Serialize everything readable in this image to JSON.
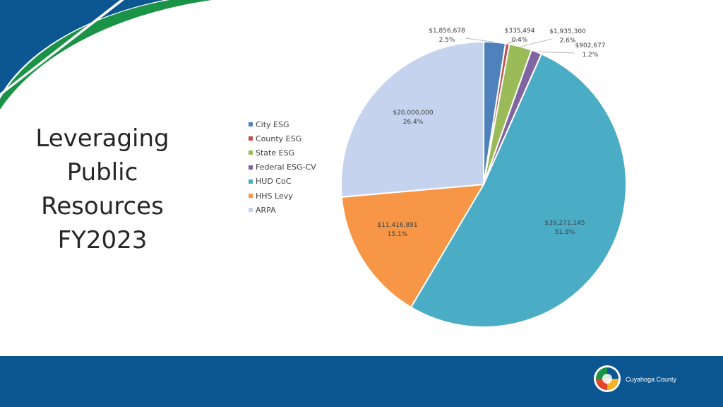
{
  "page": {
    "title_lines": [
      "Leveraging",
      "Public",
      "Resources",
      "FY2023"
    ],
    "footer_org": "Cuyahoga County"
  },
  "colors": {
    "corner_blue": "#0c5691",
    "corner_green": "#1a9346",
    "footer_blue": "#0c5691"
  },
  "icons": {
    "seal": "county-seal-icon"
  },
  "chart_data": {
    "type": "pie",
    "start_angle_deg": 0,
    "direction": "clockwise",
    "legend_position": "left",
    "slices": [
      {
        "name": "City ESG",
        "value": 1856678,
        "value_label": "$1,856,678",
        "pct_label": "2.5%",
        "color": "#4f81bd"
      },
      {
        "name": "County ESG",
        "value": 335494,
        "value_label": "$335,494",
        "pct_label": "0.4%",
        "color": "#c0504d"
      },
      {
        "name": "State ESG",
        "value": 1935300,
        "value_label": "$1,935,300",
        "pct_label": "2.6%",
        "color": "#9bbb59"
      },
      {
        "name": "Federal ESG-CV",
        "value": 902677,
        "value_label": "$902,677",
        "pct_label": "1.2%",
        "color": "#8064a2"
      },
      {
        "name": "HUD CoC",
        "value": 39271145,
        "value_label": "$39,271,145",
        "pct_label": "51.9%",
        "color": "#4bacc6"
      },
      {
        "name": "HHS Levy",
        "value": 11416891,
        "value_label": "$11,416,891",
        "pct_label": "15.1%",
        "color": "#f79646"
      },
      {
        "name": "ARPA",
        "value": 20000000,
        "value_label": "$20,000,000",
        "pct_label": "26.4%",
        "color": "#c5d3ee"
      }
    ]
  }
}
